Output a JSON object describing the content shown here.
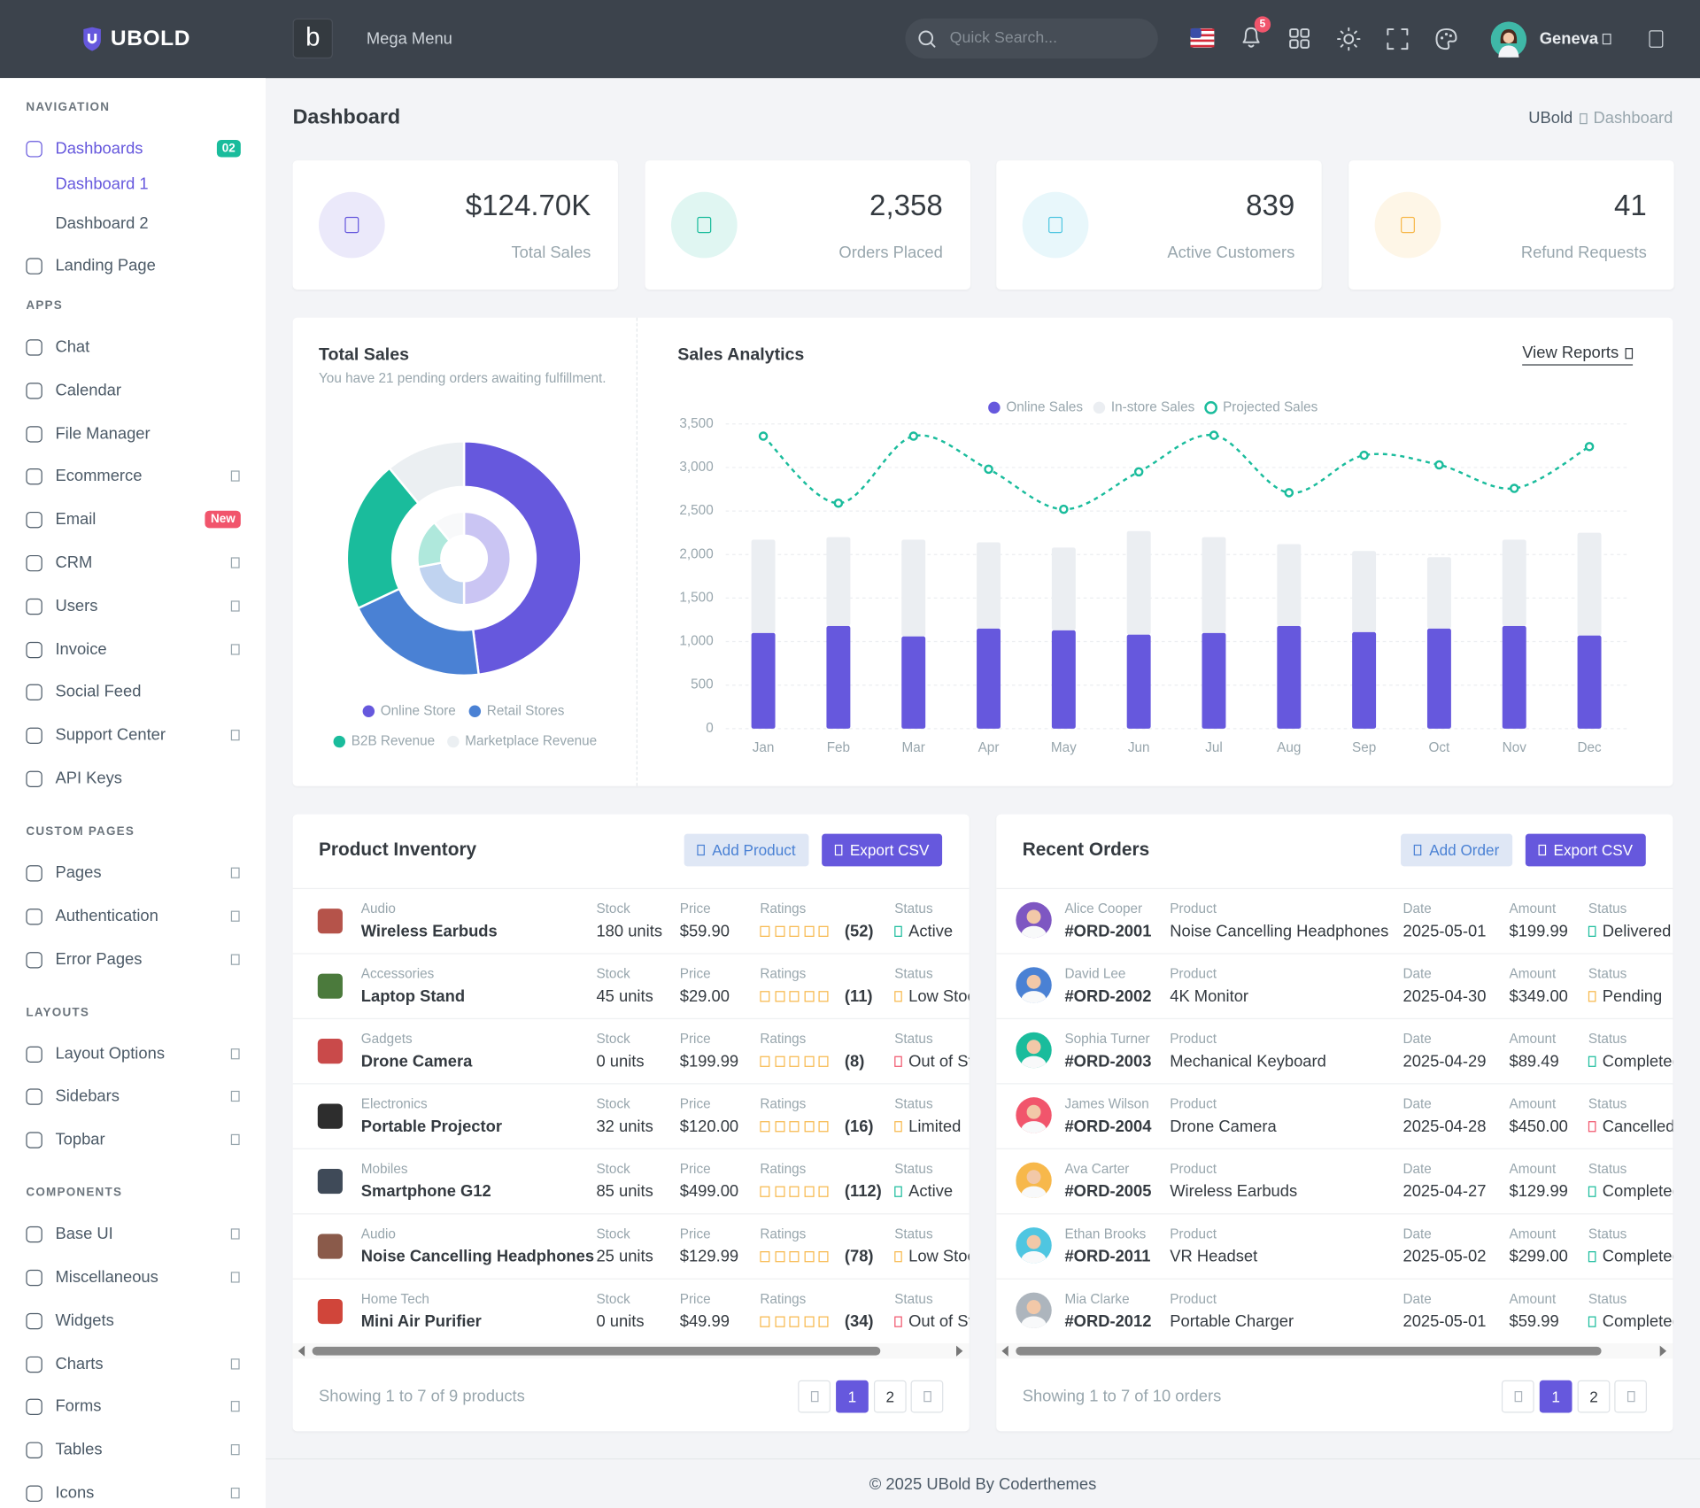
{
  "topbar": {
    "brand": "UBOLD",
    "logo_letter": "b",
    "mega_menu": "Mega Menu",
    "search_placeholder": "Quick Search...",
    "notification_count": 5,
    "user_name": "Geneva"
  },
  "sidebar": [
    {
      "title": "NAVIGATION",
      "items": [
        {
          "label": "Dashboards",
          "badge": "02",
          "badge_color": "#1abc9c",
          "active": true,
          "children": [
            {
              "label": "Dashboard 1",
              "active": true
            },
            {
              "label": "Dashboard 2"
            }
          ]
        },
        {
          "label": "Landing Page"
        }
      ]
    },
    {
      "title": "APPS",
      "items": [
        {
          "label": "Chat"
        },
        {
          "label": "Calendar"
        },
        {
          "label": "File Manager"
        },
        {
          "label": "Ecommerce",
          "arrow": true
        },
        {
          "label": "Email",
          "badge": "New",
          "badge_color": "#f1556c"
        },
        {
          "label": "CRM",
          "arrow": true
        },
        {
          "label": "Users",
          "arrow": true
        },
        {
          "label": "Invoice",
          "arrow": true
        },
        {
          "label": "Social Feed"
        },
        {
          "label": "Support Center",
          "arrow": true
        },
        {
          "label": "API Keys"
        }
      ]
    },
    {
      "title": "CUSTOM PAGES",
      "items": [
        {
          "label": "Pages",
          "arrow": true
        },
        {
          "label": "Authentication",
          "arrow": true
        },
        {
          "label": "Error Pages",
          "arrow": true
        }
      ]
    },
    {
      "title": "LAYOUTS",
      "items": [
        {
          "label": "Layout Options",
          "arrow": true
        },
        {
          "label": "Sidebars",
          "arrow": true
        },
        {
          "label": "Topbar",
          "arrow": true
        }
      ]
    },
    {
      "title": "COMPONENTS",
      "items": [
        {
          "label": "Base UI",
          "arrow": true
        },
        {
          "label": "Miscellaneous",
          "arrow": true
        },
        {
          "label": "Widgets"
        },
        {
          "label": "Charts",
          "arrow": true
        },
        {
          "label": "Forms",
          "arrow": true
        },
        {
          "label": "Tables",
          "arrow": true
        },
        {
          "label": "Icons",
          "arrow": true
        }
      ]
    }
  ],
  "page": {
    "title": "Dashboard",
    "breadcrumb": [
      "UBold",
      "Dashboard"
    ]
  },
  "stats": [
    {
      "value": "$124.70K",
      "label": "Total Sales",
      "color": "#6658dd"
    },
    {
      "value": "2,358",
      "label": "Orders Placed",
      "color": "#1abc9c"
    },
    {
      "value": "839",
      "label": "Active Customers",
      "color": "#4fc6e1"
    },
    {
      "value": "41",
      "label": "Refund Requests",
      "color": "#f7b84b"
    }
  ],
  "chart_data": [
    {
      "type": "pie",
      "title": "Total Sales",
      "subtitle": "You have 21 pending orders awaiting fulfillment.",
      "categories": [
        "Online Store",
        "Retail Stores",
        "B2B Revenue",
        "Marketplace Revenue"
      ],
      "colors": [
        "#6658dd",
        "#4a81d4",
        "#1abc9c",
        "#ebeff2"
      ],
      "series": [
        {
          "values": [
            48,
            20,
            21,
            11
          ]
        },
        {
          "values": [
            50,
            22,
            17,
            11
          ]
        }
      ]
    },
    {
      "type": "bar",
      "title": "Sales Analytics",
      "action": "View Reports",
      "stacked": true,
      "grid": true,
      "categories": [
        "Jan",
        "Feb",
        "Mar",
        "Apr",
        "May",
        "Jun",
        "Jul",
        "Aug",
        "Sep",
        "Oct",
        "Nov",
        "Dec"
      ],
      "series": [
        {
          "name": "Online Sales",
          "color": "#6658dd",
          "values": [
            1100,
            1180,
            1060,
            1150,
            1130,
            1080,
            1100,
            1180,
            1110,
            1150,
            1180,
            1070
          ]
        },
        {
          "name": "In-store Sales",
          "color": "#ebeef2",
          "values": [
            1070,
            1020,
            1110,
            990,
            950,
            1190,
            1100,
            940,
            930,
            820,
            990,
            1180
          ]
        },
        {
          "name": "Projected Sales",
          "type": "line",
          "dashed": true,
          "color": "#1abc9c",
          "values": [
            3360,
            2590,
            3360,
            2980,
            2520,
            2950,
            3370,
            2710,
            3140,
            3030,
            2760,
            3240
          ]
        }
      ],
      "ylim": [
        0,
        3500
      ],
      "yticks": [
        0,
        500,
        {
          "value": 1000,
          "label": "1,000"
        },
        {
          "value": 1500,
          "label": "1,500"
        },
        {
          "value": 2000,
          "label": "2,000"
        },
        {
          "value": 2500,
          "label": "2,500"
        },
        {
          "value": 3000,
          "label": "3,000"
        },
        {
          "value": 3500,
          "label": "3,500"
        }
      ]
    }
  ],
  "inventory": {
    "title": "Product Inventory",
    "buttons": [
      "Add Product",
      "Export CSV"
    ],
    "columns": [
      "Stock",
      "Price",
      "Ratings",
      "Status"
    ],
    "rows": [
      {
        "category": "Audio",
        "name": "Wireless Earbuds",
        "stock": "180 units",
        "price": "$59.90",
        "reviews": "(52)",
        "status": "Active",
        "tone": "success"
      },
      {
        "category": "Accessories",
        "name": "Laptop Stand",
        "stock": "45 units",
        "price": "$29.00",
        "reviews": "(11)",
        "status": "Low Stock",
        "tone": "warning"
      },
      {
        "category": "Gadgets",
        "name": "Drone Camera",
        "stock": "0 units",
        "price": "$199.99",
        "reviews": "(8)",
        "status": "Out of Stock",
        "tone": "danger"
      },
      {
        "category": "Electronics",
        "name": "Portable Projector",
        "stock": "32 units",
        "price": "$120.00",
        "reviews": "(16)",
        "status": "Limited",
        "tone": "warning"
      },
      {
        "category": "Mobiles",
        "name": "Smartphone G12",
        "stock": "85 units",
        "price": "$499.00",
        "reviews": "(112)",
        "status": "Active",
        "tone": "success"
      },
      {
        "category": "Audio",
        "name": "Noise Cancelling Headphones",
        "stock": "25 units",
        "price": "$129.99",
        "reviews": "(78)",
        "status": "Low Stock",
        "tone": "warning"
      },
      {
        "category": "Home Tech",
        "name": "Mini Air Purifier",
        "stock": "0 units",
        "price": "$49.99",
        "reviews": "(34)",
        "status": "Out of Stock",
        "tone": "danger"
      }
    ],
    "summary": "Showing 1 to 7 of 9 products",
    "pages": [
      1,
      2
    ],
    "current_page": 1
  },
  "orders": {
    "title": "Recent Orders",
    "buttons": [
      "Add Order",
      "Export CSV"
    ],
    "columns": [
      "Product",
      "Date",
      "Amount",
      "Status"
    ],
    "rows": [
      {
        "customer": "Alice Cooper",
        "id": "#ORD-2001",
        "product": "Noise Cancelling Headphones",
        "date": "2025-05-01",
        "amount": "$199.99",
        "status": "Delivered",
        "tone": "success"
      },
      {
        "customer": "David Lee",
        "id": "#ORD-2002",
        "product": "4K Monitor",
        "date": "2025-04-30",
        "amount": "$349.00",
        "status": "Pending",
        "tone": "warning"
      },
      {
        "customer": "Sophia Turner",
        "id": "#ORD-2003",
        "product": "Mechanical Keyboard",
        "date": "2025-04-29",
        "amount": "$89.49",
        "status": "Completed",
        "tone": "success"
      },
      {
        "customer": "James Wilson",
        "id": "#ORD-2004",
        "product": "Drone Camera",
        "date": "2025-04-28",
        "amount": "$450.00",
        "status": "Cancelled",
        "tone": "danger"
      },
      {
        "customer": "Ava Carter",
        "id": "#ORD-2005",
        "product": "Wireless Earbuds",
        "date": "2025-04-27",
        "amount": "$129.99",
        "status": "Completed",
        "tone": "success"
      },
      {
        "customer": "Ethan Brooks",
        "id": "#ORD-2011",
        "product": "VR Headset",
        "date": "2025-05-02",
        "amount": "$299.00",
        "status": "Completed",
        "tone": "success"
      },
      {
        "customer": "Mia Clarke",
        "id": "#ORD-2012",
        "product": "Portable Charger",
        "date": "2025-05-01",
        "amount": "$59.99",
        "status": "Completed",
        "tone": "success"
      }
    ],
    "summary": "Showing 1 to 7 of 10 orders",
    "pages": [
      1,
      2
    ],
    "current_page": 1
  },
  "footer": "© 2025 UBold By Coderthemes"
}
